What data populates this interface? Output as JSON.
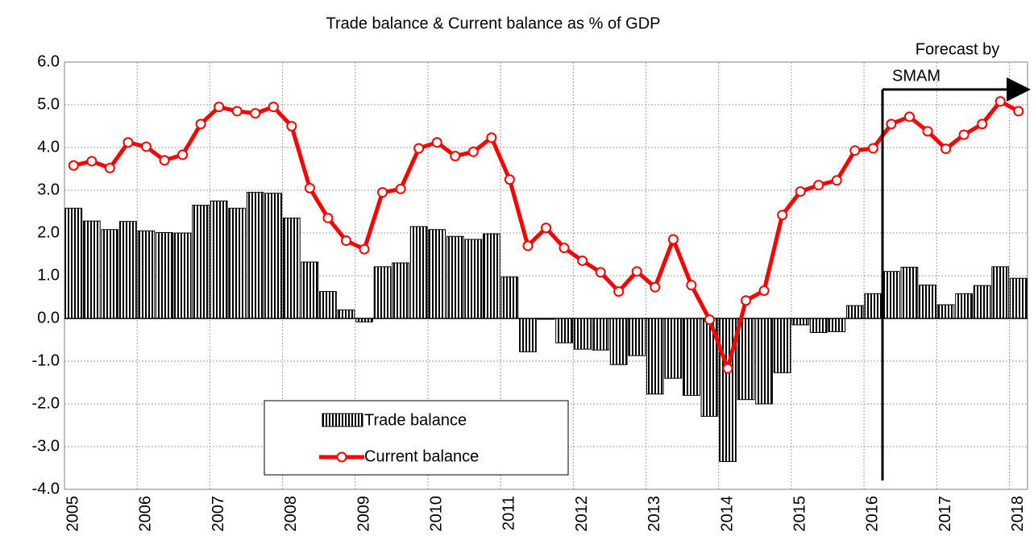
{
  "chart_data": {
    "type": "bar-line",
    "title": "Trade balance & Current balance as % of GDP",
    "annotation": [
      "Forecast by",
      "SMAM"
    ],
    "categories": [
      "2005",
      null,
      null,
      null,
      "2006",
      null,
      null,
      null,
      "2007",
      null,
      null,
      null,
      "2008",
      null,
      null,
      null,
      "2009",
      null,
      null,
      null,
      "2010",
      null,
      null,
      null,
      "2011",
      null,
      null,
      null,
      "2012",
      null,
      null,
      null,
      "2013",
      null,
      null,
      null,
      "2014",
      null,
      null,
      null,
      "2015",
      null,
      null,
      null,
      "2016",
      null,
      null,
      null,
      "2017",
      null,
      null,
      null,
      "2018"
    ],
    "series": [
      {
        "name": "Trade balance",
        "type": "bar",
        "color": "#000000",
        "values": [
          2.58,
          2.28,
          2.08,
          2.27,
          2.05,
          2.01,
          2.0,
          2.65,
          2.75,
          2.58,
          2.95,
          2.93,
          2.35,
          1.32,
          0.63,
          0.2,
          -0.08,
          1.21,
          1.3,
          2.15,
          2.08,
          1.92,
          1.85,
          1.98,
          0.97,
          -0.78,
          -0.02,
          -0.57,
          -0.72,
          -0.74,
          -1.08,
          -0.87,
          -1.77,
          -1.4,
          -1.8,
          -2.29,
          -3.35,
          -1.9,
          -2.0,
          -1.27,
          -0.15,
          -0.33,
          -0.31,
          0.3,
          0.58,
          1.1,
          1.2,
          0.78,
          0.32,
          0.58,
          0.77,
          1.21,
          0.94
        ]
      },
      {
        "name": "Current balance",
        "type": "line",
        "color": "#ff0000",
        "values": [
          3.58,
          3.68,
          3.52,
          4.12,
          4.02,
          3.7,
          3.83,
          4.55,
          4.95,
          4.85,
          4.8,
          4.95,
          4.5,
          3.05,
          2.35,
          1.82,
          1.62,
          2.95,
          3.03,
          3.98,
          4.12,
          3.8,
          3.9,
          4.23,
          3.25,
          1.7,
          2.12,
          1.65,
          1.35,
          1.08,
          0.63,
          1.1,
          0.73,
          1.85,
          0.78,
          -0.03,
          -1.17,
          0.42,
          0.65,
          2.42,
          2.97,
          3.12,
          3.23,
          3.93,
          3.98,
          4.55,
          4.72,
          4.38,
          3.97,
          4.3,
          4.55,
          5.08,
          4.85
        ]
      }
    ],
    "ylim": [
      -4,
      6
    ],
    "yticks": [
      {
        "value": -4,
        "label": "-4.0"
      },
      {
        "value": -3,
        "label": "-3.0"
      },
      {
        "value": -2,
        "label": "-2.0"
      },
      {
        "value": -1,
        "label": "-1.0"
      },
      {
        "value": 0,
        "label": "0.0"
      },
      {
        "value": 1,
        "label": "1.0"
      },
      {
        "value": 2,
        "label": "2.0"
      },
      {
        "value": 3,
        "label": "3.0"
      },
      {
        "value": 4,
        "label": "4.0"
      },
      {
        "value": 5,
        "label": "5.0"
      },
      {
        "value": 6,
        "label": "6.0"
      }
    ],
    "grid": true
  }
}
